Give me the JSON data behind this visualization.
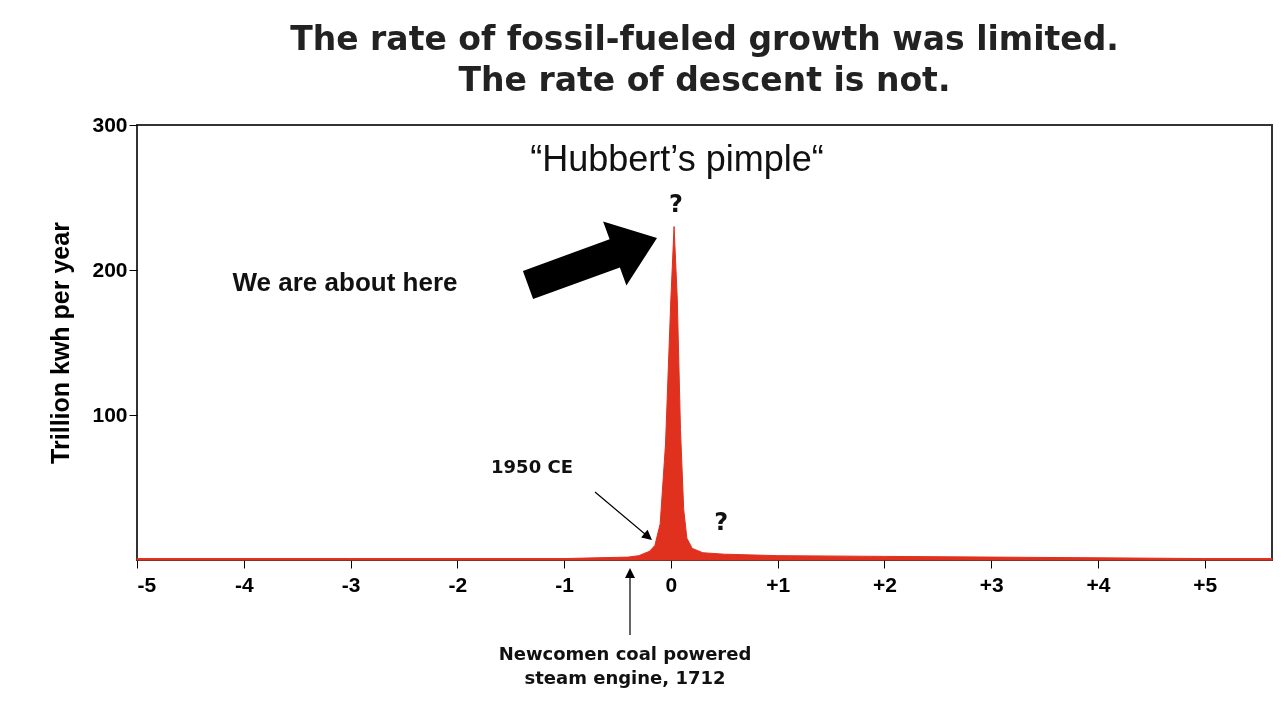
{
  "chart_data": {
    "type": "area",
    "title": "The rate of fossil-fueled growth was limited.",
    "subtitle": "The rate of descent is not.",
    "ylabel": "Trillion kwh per year",
    "x": [
      -5,
      -3,
      -1,
      -0.4,
      -0.3,
      -0.2,
      -0.15,
      -0.1,
      -0.05,
      0,
      0.03,
      0.06,
      0.09,
      0.12,
      0.15,
      0.2,
      0.3,
      0.5,
      1,
      2,
      3,
      4,
      5,
      5.63
    ],
    "series": [
      {
        "color": "#e0301e",
        "values": [
          1,
          1,
          1,
          2,
          3,
          6,
          10,
          25,
          80,
          180,
          230,
          180,
          90,
          35,
          15,
          8,
          5,
          4,
          3,
          2.5,
          2,
          1.5,
          1,
          1
        ]
      }
    ],
    "xlim": [
      -5,
      5.63
    ],
    "ylim": [
      0,
      300
    ],
    "xticks": [
      -5,
      -4,
      -3,
      -2,
      -1,
      0,
      {
        "value": 1,
        "label": "+1"
      },
      {
        "value": 2,
        "label": "+2"
      },
      {
        "value": 3,
        "label": "+3"
      },
      {
        "value": 4,
        "label": "+4"
      },
      {
        "value": 5,
        "label": "+5"
      }
    ],
    "yticks": [
      100,
      200,
      300
    ],
    "grid": false,
    "annotations": [
      "“Hubbert’s pimple“",
      {
        "text": "?",
        "x": 0.03,
        "y": 230
      },
      "We are about here",
      "1950 CE",
      {
        "text": "?",
        "x": 0.5,
        "y": 4
      },
      "Newcomen coal powered steam engine, 1712"
    ]
  }
}
